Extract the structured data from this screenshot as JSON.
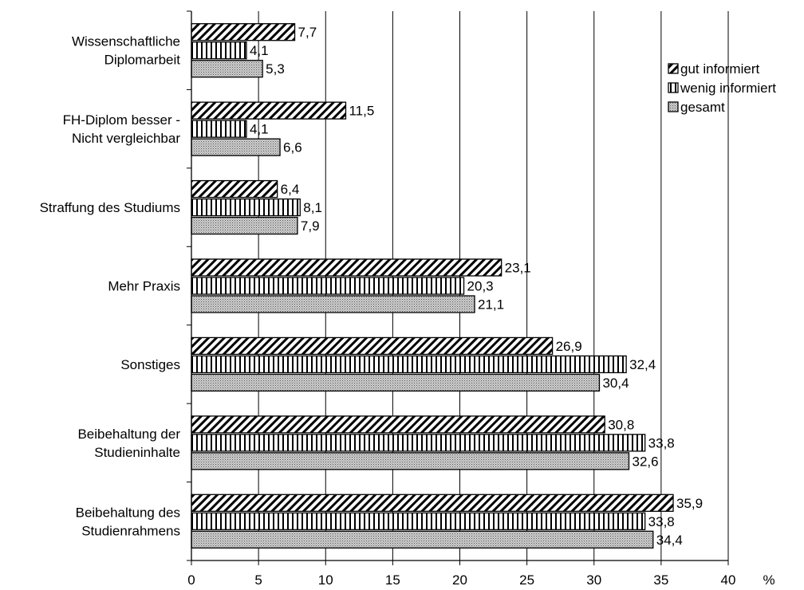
{
  "chart_data": {
    "type": "bar",
    "orientation": "horizontal",
    "categories": [
      [
        "Wissenschaftliche",
        "Diplomarbeit"
      ],
      [
        "FH-Diplom besser -",
        "Nicht vergleichbar"
      ],
      [
        "Straffung des Studiums"
      ],
      [
        "Mehr Praxis"
      ],
      [
        "Sonstiges"
      ],
      [
        "Beibehaltung der",
        "Studieninhalte"
      ],
      [
        "Beibehaltung des",
        "Studienrahmens"
      ]
    ],
    "series": [
      {
        "name": "gut informiert",
        "pattern": "diagonal",
        "values": [
          7.7,
          11.5,
          6.4,
          23.1,
          26.9,
          30.8,
          35.9
        ],
        "labels": [
          "7,7",
          "11,5",
          "6,4",
          "23,1",
          "26,9",
          "30,8",
          "35,9"
        ]
      },
      {
        "name": "wenig informiert",
        "pattern": "vertical",
        "values": [
          4.1,
          4.1,
          8.1,
          20.3,
          32.4,
          33.8,
          33.8
        ],
        "labels": [
          "4,1",
          "4,1",
          "8,1",
          "20,3",
          "32,4",
          "33,8",
          "33,8"
        ]
      },
      {
        "name": "gesamt",
        "pattern": "dots",
        "values": [
          5.3,
          6.6,
          7.9,
          21.1,
          30.4,
          32.6,
          34.4
        ],
        "labels": [
          "5,3",
          "6,6",
          "7,9",
          "21,1",
          "30,4",
          "32,6",
          "34,4"
        ]
      }
    ],
    "xlim": [
      0,
      40
    ],
    "xticks": [
      0,
      5,
      10,
      15,
      20,
      25,
      30,
      35,
      40
    ],
    "unit": "%",
    "grid": "vertical",
    "legend_position": "right"
  }
}
